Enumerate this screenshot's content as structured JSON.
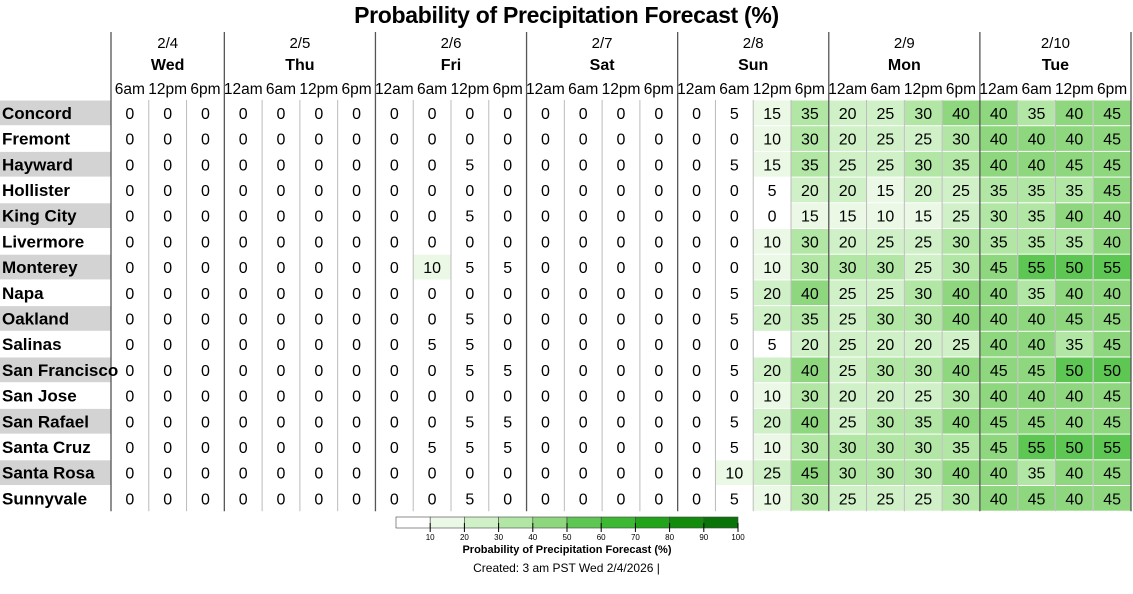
{
  "chart_data": {
    "type": "heatmap",
    "title": "Probability of Precipitation Forecast (%)",
    "days": [
      {
        "date": "2/4",
        "name": "Wed",
        "times": [
          "6am",
          "12pm",
          "6pm"
        ]
      },
      {
        "date": "2/5",
        "name": "Thu",
        "times": [
          "12am",
          "6am",
          "12pm",
          "6pm"
        ]
      },
      {
        "date": "2/6",
        "name": "Fri",
        "times": [
          "12am",
          "6am",
          "12pm",
          "6pm"
        ]
      },
      {
        "date": "2/7",
        "name": "Sat",
        "times": [
          "12am",
          "6am",
          "12pm",
          "6pm"
        ]
      },
      {
        "date": "2/8",
        "name": "Sun",
        "times": [
          "12am",
          "6am",
          "12pm",
          "6pm"
        ]
      },
      {
        "date": "2/9",
        "name": "Mon",
        "times": [
          "12am",
          "6am",
          "12pm",
          "6pm"
        ]
      },
      {
        "date": "2/10",
        "name": "Tue",
        "times": [
          "12am",
          "6am",
          "12pm",
          "6pm"
        ]
      }
    ],
    "rows": [
      {
        "name": "Concord",
        "values": [
          0,
          0,
          0,
          0,
          0,
          0,
          0,
          0,
          0,
          0,
          0,
          0,
          0,
          0,
          0,
          0,
          5,
          15,
          35,
          20,
          25,
          30,
          40,
          40,
          35,
          40,
          45
        ]
      },
      {
        "name": "Fremont",
        "values": [
          0,
          0,
          0,
          0,
          0,
          0,
          0,
          0,
          0,
          0,
          0,
          0,
          0,
          0,
          0,
          0,
          0,
          10,
          30,
          20,
          25,
          25,
          30,
          40,
          40,
          40,
          45
        ]
      },
      {
        "name": "Hayward",
        "values": [
          0,
          0,
          0,
          0,
          0,
          0,
          0,
          0,
          0,
          5,
          0,
          0,
          0,
          0,
          0,
          0,
          5,
          15,
          35,
          25,
          25,
          30,
          35,
          40,
          40,
          45,
          45
        ]
      },
      {
        "name": "Hollister",
        "values": [
          0,
          0,
          0,
          0,
          0,
          0,
          0,
          0,
          0,
          0,
          0,
          0,
          0,
          0,
          0,
          0,
          0,
          5,
          20,
          20,
          15,
          20,
          25,
          35,
          35,
          35,
          45
        ]
      },
      {
        "name": "King City",
        "values": [
          0,
          0,
          0,
          0,
          0,
          0,
          0,
          0,
          0,
          5,
          0,
          0,
          0,
          0,
          0,
          0,
          0,
          0,
          15,
          15,
          10,
          15,
          25,
          30,
          35,
          40,
          40
        ]
      },
      {
        "name": "Livermore",
        "values": [
          0,
          0,
          0,
          0,
          0,
          0,
          0,
          0,
          0,
          0,
          0,
          0,
          0,
          0,
          0,
          0,
          0,
          10,
          30,
          20,
          25,
          25,
          30,
          35,
          35,
          35,
          40
        ]
      },
      {
        "name": "Monterey",
        "values": [
          0,
          0,
          0,
          0,
          0,
          0,
          0,
          0,
          10,
          5,
          5,
          0,
          0,
          0,
          0,
          0,
          0,
          10,
          30,
          30,
          30,
          25,
          30,
          45,
          55,
          50,
          55
        ]
      },
      {
        "name": "Napa",
        "values": [
          0,
          0,
          0,
          0,
          0,
          0,
          0,
          0,
          0,
          0,
          0,
          0,
          0,
          0,
          0,
          0,
          5,
          20,
          40,
          25,
          25,
          30,
          40,
          40,
          35,
          40,
          40
        ]
      },
      {
        "name": "Oakland",
        "values": [
          0,
          0,
          0,
          0,
          0,
          0,
          0,
          0,
          0,
          5,
          0,
          0,
          0,
          0,
          0,
          0,
          5,
          20,
          35,
          25,
          30,
          30,
          40,
          40,
          40,
          45,
          45
        ]
      },
      {
        "name": "Salinas",
        "values": [
          0,
          0,
          0,
          0,
          0,
          0,
          0,
          0,
          5,
          5,
          0,
          0,
          0,
          0,
          0,
          0,
          0,
          5,
          20,
          25,
          20,
          20,
          25,
          40,
          40,
          35,
          45
        ]
      },
      {
        "name": "San Francisco",
        "values": [
          0,
          0,
          0,
          0,
          0,
          0,
          0,
          0,
          0,
          5,
          5,
          0,
          0,
          0,
          0,
          0,
          5,
          20,
          40,
          25,
          30,
          30,
          40,
          45,
          45,
          50,
          50
        ]
      },
      {
        "name": "San Jose",
        "values": [
          0,
          0,
          0,
          0,
          0,
          0,
          0,
          0,
          0,
          0,
          0,
          0,
          0,
          0,
          0,
          0,
          0,
          10,
          30,
          20,
          20,
          25,
          30,
          40,
          40,
          40,
          45
        ]
      },
      {
        "name": "San Rafael",
        "values": [
          0,
          0,
          0,
          0,
          0,
          0,
          0,
          0,
          0,
          5,
          5,
          0,
          0,
          0,
          0,
          0,
          5,
          20,
          40,
          25,
          30,
          35,
          40,
          45,
          45,
          40,
          45
        ]
      },
      {
        "name": "Santa Cruz",
        "values": [
          0,
          0,
          0,
          0,
          0,
          0,
          0,
          0,
          5,
          5,
          5,
          0,
          0,
          0,
          0,
          0,
          5,
          10,
          30,
          30,
          30,
          30,
          35,
          45,
          55,
          50,
          55
        ]
      },
      {
        "name": "Santa Rosa",
        "values": [
          0,
          0,
          0,
          0,
          0,
          0,
          0,
          0,
          0,
          0,
          0,
          0,
          0,
          0,
          0,
          0,
          10,
          25,
          45,
          30,
          30,
          30,
          40,
          40,
          35,
          40,
          45
        ]
      },
      {
        "name": "Sunnyvale",
        "values": [
          0,
          0,
          0,
          0,
          0,
          0,
          0,
          0,
          0,
          5,
          0,
          0,
          0,
          0,
          0,
          0,
          5,
          10,
          30,
          25,
          25,
          25,
          30,
          40,
          45,
          40,
          45
        ]
      }
    ],
    "color_scale": {
      "bin_size": 10,
      "colors": [
        "#ffffff",
        "#eaf8e5",
        "#d0f0c8",
        "#b2e6a5",
        "#8ed77e",
        "#5ec653",
        "#3cb832",
        "#22a41a",
        "#138c0d",
        "#0a740a"
      ]
    },
    "legend": {
      "ticks": [
        "10",
        "20",
        "30",
        "40",
        "50",
        "60",
        "70",
        "80",
        "90",
        "100"
      ],
      "label": "Probability of Precipitation Forecast (%)",
      "placement": "bottom-center"
    },
    "alt_row_shading": "#d3d3d3"
  },
  "footer": {
    "created": "Created: 3 am PST Wed 2/4/2026  |"
  }
}
